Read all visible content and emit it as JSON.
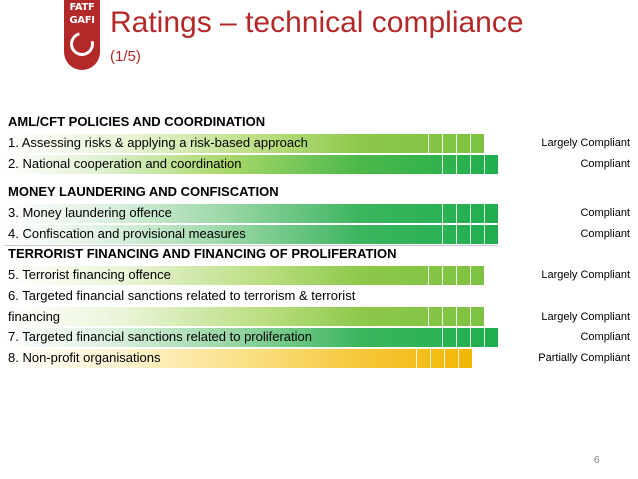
{
  "logo": {
    "line1": "FATF",
    "line2": "GAFI"
  },
  "header": {
    "title": "Ratings – technical compliance",
    "subtitle": "(1/5)"
  },
  "sections": [
    {
      "label": "AML/CFT POLICIES AND COORDINATION"
    },
    {
      "label": "MONEY LAUNDERING AND CONFISCATION"
    },
    {
      "label": "TERRORIST FINANCING AND FINANCING OF PROLIFERATION"
    }
  ],
  "recommendations": [
    {
      "label": "1. Assessing risks & applying a risk-based approach",
      "rating": "Largely Compliant"
    },
    {
      "label": "2. National cooperation and coordination",
      "rating": "Compliant"
    },
    {
      "label": "3. Money laundering offence",
      "rating": "Compliant"
    },
    {
      "label": "4. Confiscation and provisional measures",
      "rating": "Compliant"
    },
    {
      "label": "5. Terrorist financing offence",
      "rating": "Largely Compliant"
    },
    {
      "label_line1": "6. Targeted financial sanctions related to terrorism & terrorist",
      "label_line2": "financing",
      "rating": "Largely Compliant"
    },
    {
      "label": "7. Targeted financial sanctions related to proliferation",
      "rating": "Compliant"
    },
    {
      "label": "8. Non-profit organisations",
      "rating": "Partially Compliant"
    }
  ],
  "colors": {
    "compliant": "#1fae4f",
    "largely_compliant": "#7fc241",
    "partially_compliant": "#f2b705",
    "accent": "#b3292a"
  },
  "page_number": "6"
}
